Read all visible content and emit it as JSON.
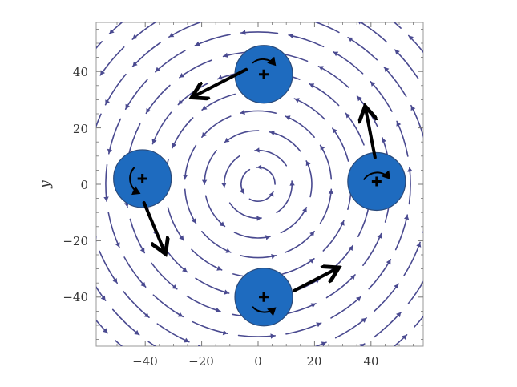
{
  "chart_data": {
    "type": "vector-field",
    "xlabel": "",
    "ylabel": "y",
    "xlim": [
      -58,
      58
    ],
    "ylim": [
      -58,
      58
    ],
    "x_ticks": [
      "−40",
      "−20",
      "0",
      "20",
      "40"
    ],
    "y_ticks": [
      "40",
      "20",
      "0",
      "−20",
      "−40"
    ],
    "field": "circulation about origin (counterclockwise)",
    "particles": [
      {
        "name": "top",
        "x": 2,
        "y": 39,
        "spin": "counterclockwise",
        "velocity_dir": "left-down"
      },
      {
        "name": "left",
        "x": -41,
        "y": 2,
        "spin": "counterclockwise",
        "velocity_dir": "down"
      },
      {
        "name": "bottom",
        "x": 2,
        "y": -40,
        "spin": "counterclockwise",
        "velocity_dir": "right-up"
      },
      {
        "name": "right",
        "x": 42,
        "y": 1,
        "spin": "counterclockwise",
        "velocity_dir": "up"
      }
    ]
  },
  "colors": {
    "stream": "#4a4a90",
    "particle_fill": "#1e6bbf",
    "particle_edge": "#2a4a7a",
    "arrow": "#000000",
    "frame": "#999999"
  }
}
